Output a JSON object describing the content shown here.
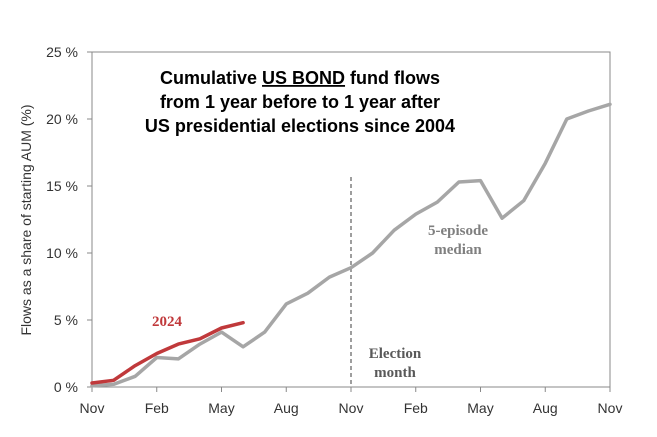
{
  "chart_data": {
    "type": "line",
    "title_lines": [
      {
        "before": "Cumulative ",
        "underlined": "US BOND",
        "after": " fund flows"
      },
      {
        "before": "from 1 year before to 1 year after",
        "underlined": "",
        "after": ""
      },
      {
        "before": "US presidential elections since 2004",
        "underlined": "",
        "after": ""
      }
    ],
    "ylabel": "Flows as a share of starting AUM (%)",
    "xlabel": "",
    "ylim": [
      0,
      25
    ],
    "yticks": [
      {
        "value": 0,
        "label": "0 %"
      },
      {
        "value": 5,
        "label": "5 %"
      },
      {
        "value": 10,
        "label": "10 %"
      },
      {
        "value": 15,
        "label": "15 %"
      },
      {
        "value": 20,
        "label": "20 %"
      },
      {
        "value": 25,
        "label": "25 %"
      }
    ],
    "xlim": [
      0,
      24
    ],
    "xticks": [
      {
        "value": 0,
        "label": "Nov"
      },
      {
        "value": 3,
        "label": "Feb"
      },
      {
        "value": 6,
        "label": "May"
      },
      {
        "value": 9,
        "label": "Aug"
      },
      {
        "value": 12,
        "label": "Nov"
      },
      {
        "value": 15,
        "label": "Feb"
      },
      {
        "value": 18,
        "label": "May"
      },
      {
        "value": 21,
        "label": "Aug"
      },
      {
        "value": 24,
        "label": "Nov"
      }
    ],
    "grid": false,
    "series": [
      {
        "name": "5-episode median",
        "color": "#a6a6a6",
        "x": [
          0,
          1,
          2,
          3,
          4,
          5,
          6,
          7,
          8,
          9,
          10,
          11,
          12,
          13,
          14,
          15,
          16,
          17,
          18,
          19,
          20,
          21,
          22,
          23,
          24
        ],
        "values": [
          0.1,
          0.2,
          0.8,
          2.2,
          2.1,
          3.2,
          4.1,
          3.0,
          4.1,
          6.2,
          7.0,
          8.2,
          8.9,
          10.0,
          11.7,
          12.9,
          13.8,
          15.3,
          15.4,
          12.6,
          13.9,
          16.7,
          20.0,
          20.6,
          21.1
        ]
      },
      {
        "name": "2024",
        "color": "#c0393b",
        "x": [
          0,
          1,
          2,
          3,
          4,
          5,
          6,
          7
        ],
        "values": [
          0.3,
          0.5,
          1.6,
          2.5,
          3.2,
          3.6,
          4.4,
          4.8
        ]
      }
    ],
    "annotations": [
      {
        "text": "2024",
        "color": "#c0393b"
      },
      {
        "text_lines": [
          "5-episode",
          "median"
        ],
        "color": "#7f7f7f"
      },
      {
        "text_lines": [
          "Election",
          "month"
        ],
        "color": "#595959"
      }
    ],
    "election_marker": {
      "x": 12,
      "style": "dashed",
      "color": "#7f7f7f"
    }
  }
}
